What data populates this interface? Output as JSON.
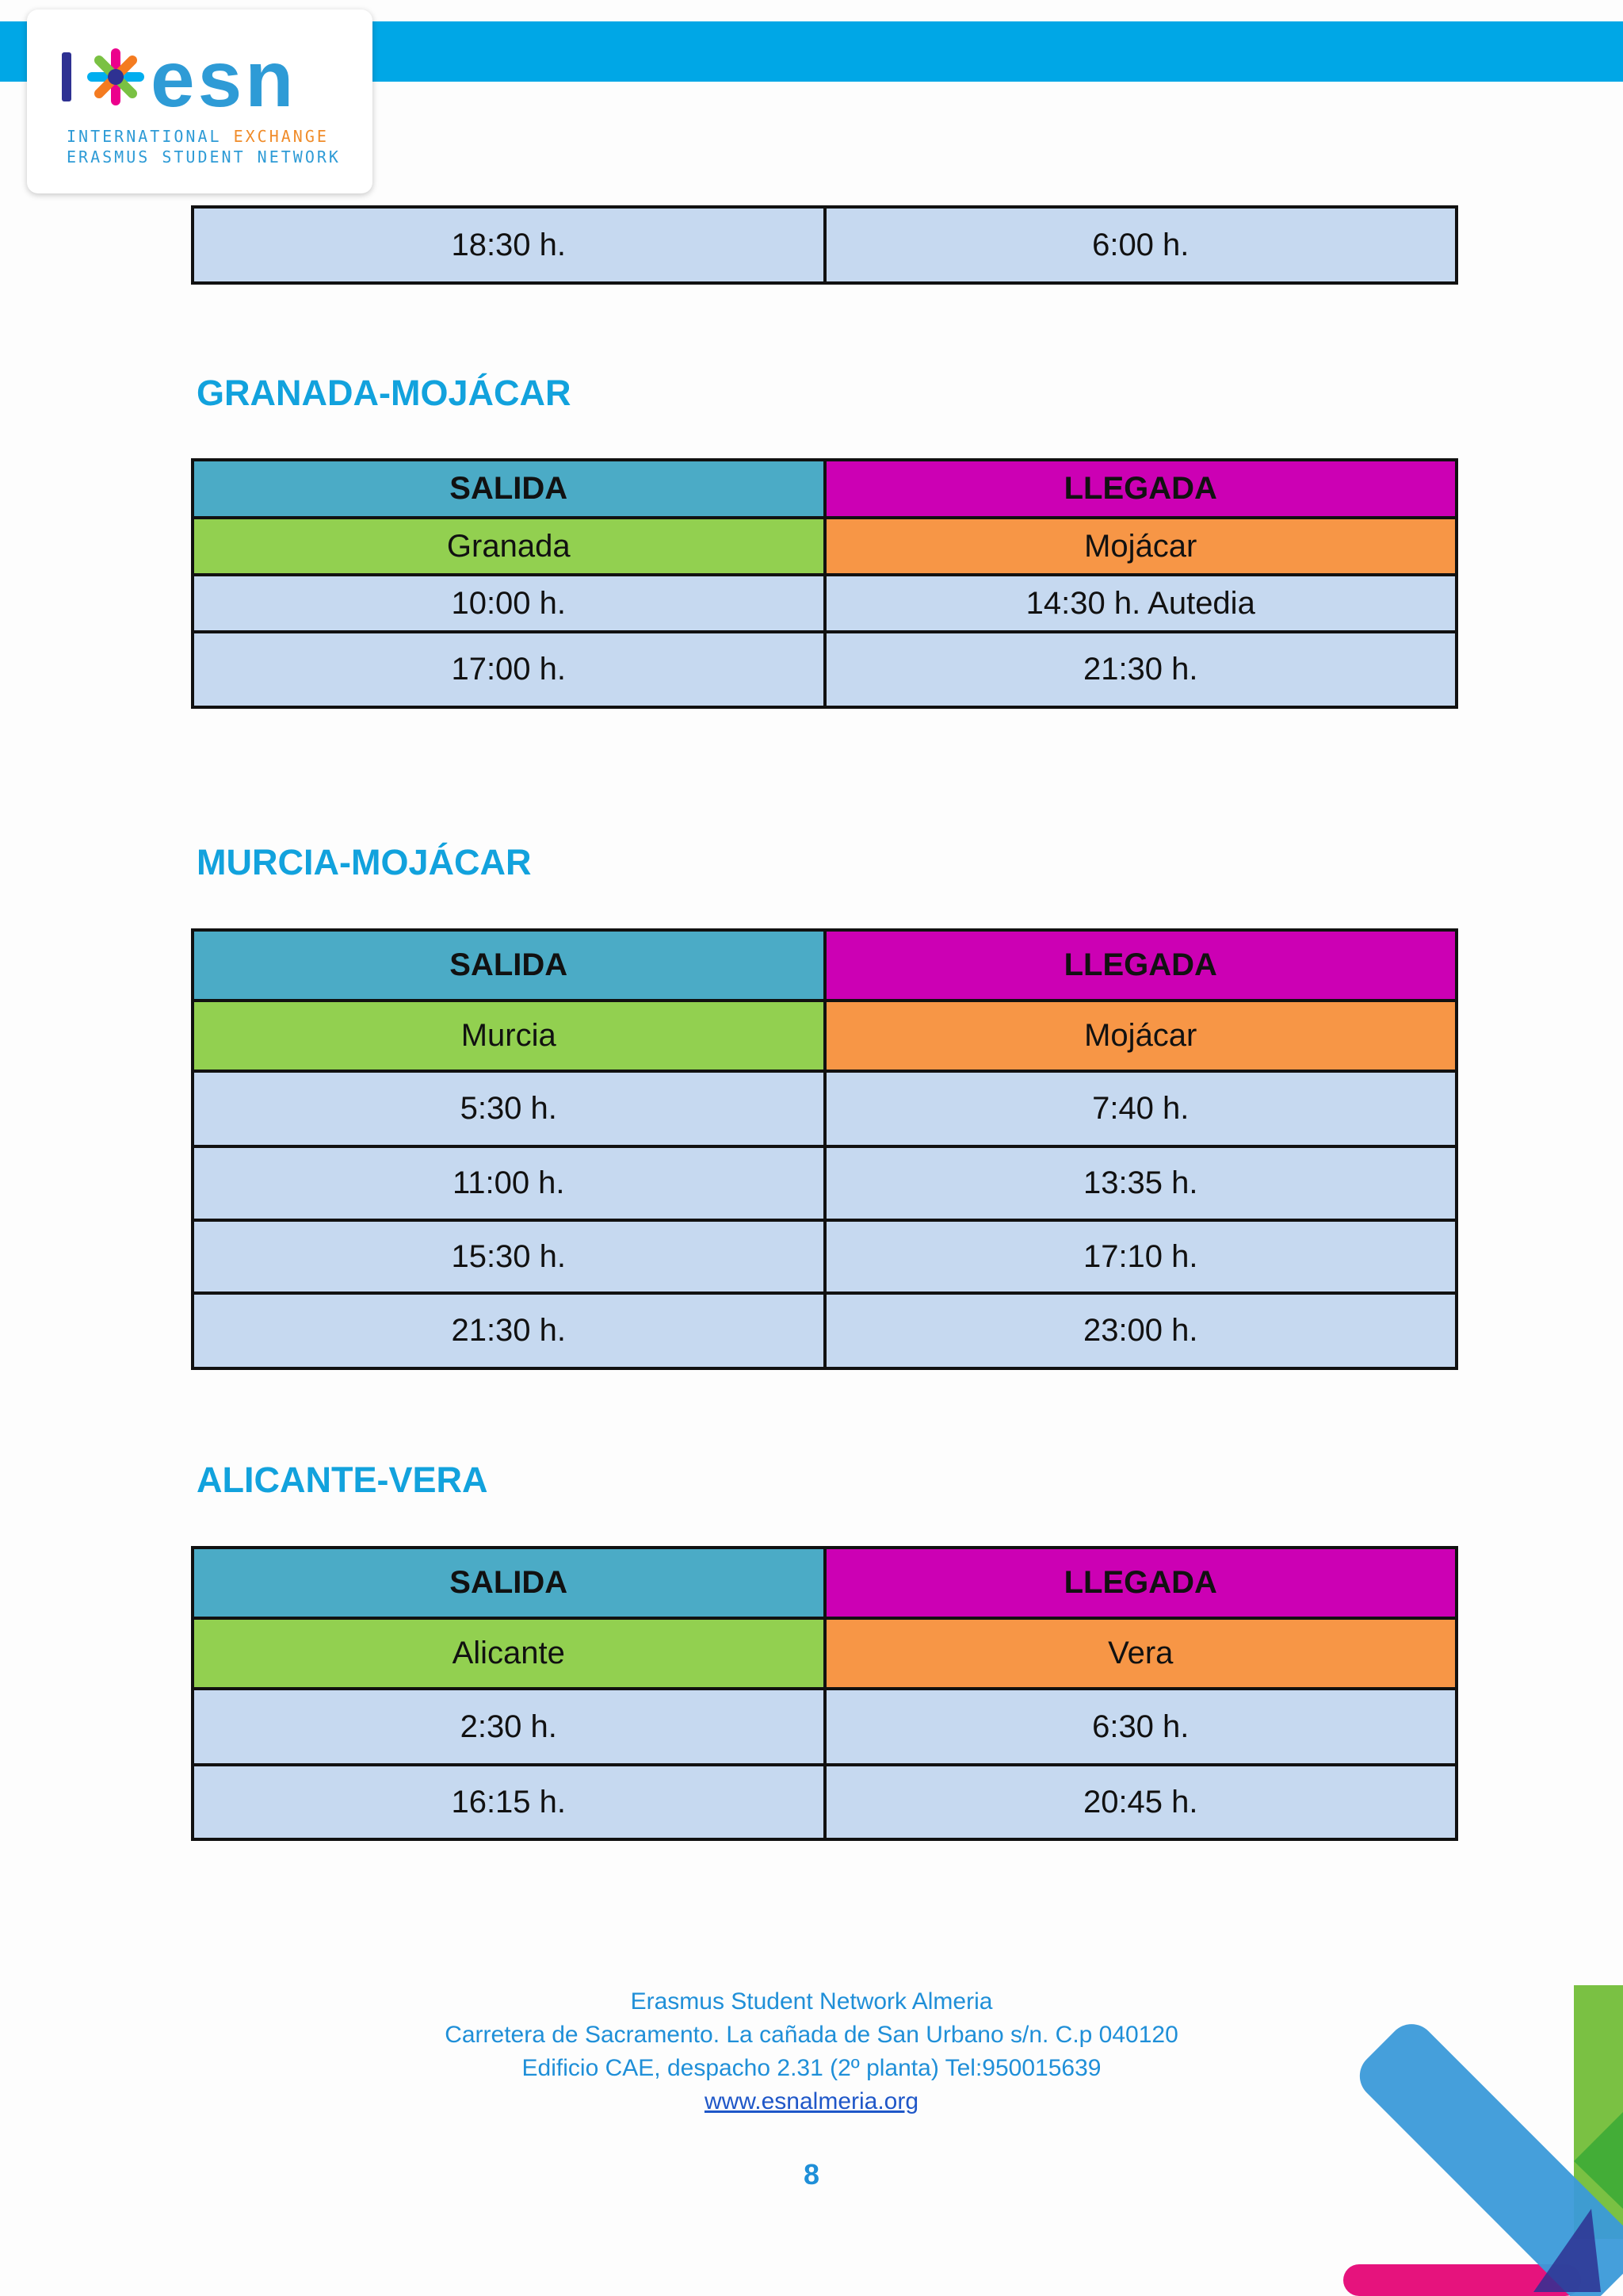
{
  "header": {
    "logo_wordmark": "esn",
    "logo_line1_a": "INTERNATIONAL ",
    "logo_line1_b": "EXCHANGE",
    "logo_line2": "ERASMUS STUDENT NETWORK",
    "colors": {
      "band": "#00a7e6",
      "wordmark": "#2e9bd6",
      "accent": "#f08c2a"
    }
  },
  "top_table": {
    "rows": [
      [
        "18:30 h.",
        "6:00 h."
      ]
    ]
  },
  "sections": [
    {
      "title": "GRANADA-MOJÁCAR",
      "header": [
        "SALIDA",
        "LLEGADA"
      ],
      "cities": [
        "Granada",
        "Mojácar"
      ],
      "rows": [
        [
          "10:00 h.",
          "14:30 h. Autedia"
        ],
        [
          "17:00 h.",
          "21:30 h."
        ]
      ]
    },
    {
      "title": "MURCIA-MOJÁCAR",
      "header": [
        "SALIDA",
        "LLEGADA"
      ],
      "cities": [
        "Murcia",
        "Mojácar"
      ],
      "rows": [
        [
          "5:30 h.",
          "7:40 h."
        ],
        [
          "11:00 h.",
          "13:35 h."
        ],
        [
          "15:30 h.",
          "17:10 h."
        ],
        [
          "21:30 h.",
          "23:00 h."
        ]
      ]
    },
    {
      "title": "ALICANTE-VERA",
      "header": [
        "SALIDA",
        "LLEGADA"
      ],
      "cities": [
        "Alicante",
        "Vera"
      ],
      "rows": [
        [
          "2:30 h.",
          "6:30 h."
        ],
        [
          "16:15 h.",
          "20:45 h."
        ]
      ]
    }
  ],
  "footer": {
    "org": "Erasmus Student Network Almeria",
    "address": "Carretera de Sacramento. La cañada de San Urbano s/n. C.p 040120",
    "office": "Edificio CAE, despacho 2.31 (2º planta) Tel:950015639",
    "website": "www.esnalmeria.org",
    "page_number": "8"
  },
  "colors": {
    "heading": "#12a2dd",
    "salida_header": "#4babc6",
    "llegada_header": "#cc00b4",
    "departure_city": "#92d050",
    "arrival_city": "#f79646",
    "time_cell": "#c6d9f0"
  }
}
